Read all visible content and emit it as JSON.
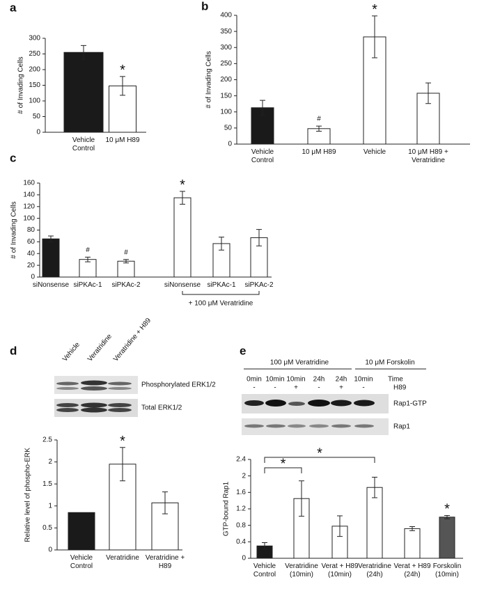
{
  "chart_data": [
    {
      "type": "bar",
      "panel_label": "a",
      "ylabel": "# of Invading Cells",
      "categories": [
        "Vehicle\nControl",
        "10 μM H89"
      ],
      "values": [
        255,
        148
      ],
      "errors": [
        22,
        30
      ],
      "colors": [
        "#1a1a1a",
        "#ffffff"
      ],
      "value_annotations": [
        null,
        "*"
      ],
      "ylim": [
        0,
        300
      ],
      "yticks": [
        0,
        50,
        100,
        150,
        200,
        250,
        300
      ]
    },
    {
      "type": "bar",
      "panel_label": "b",
      "ylabel": "# of Invading Cells",
      "categories": [
        "Vehicle\nControl",
        "10 μM H89",
        "Vehicle",
        "10 μM H89 +\nVeratridine"
      ],
      "values": [
        113,
        48,
        333,
        158
      ],
      "errors": [
        23,
        8,
        65,
        32
      ],
      "colors": [
        "#1a1a1a",
        "#ffffff",
        "#ffffff",
        "#ffffff"
      ],
      "value_annotations": [
        null,
        "#",
        "*",
        null
      ],
      "ylim": [
        0,
        400
      ],
      "yticks": [
        0,
        50,
        100,
        150,
        200,
        250,
        300,
        350,
        400
      ]
    },
    {
      "type": "bar",
      "panel_label": "c",
      "ylabel": "# of Invading Cells",
      "categories": [
        "siNonsense",
        "siPKAc-1",
        "siPKAc-2",
        "siNonsense",
        "siPKAc-1",
        "siPKAc-2"
      ],
      "values": [
        65,
        30,
        27,
        135,
        57,
        67
      ],
      "errors": [
        5,
        4,
        3,
        11,
        11,
        14
      ],
      "colors": [
        "#1a1a1a",
        "#ffffff",
        "#ffffff",
        "#ffffff",
        "#ffffff",
        "#ffffff"
      ],
      "value_annotations": [
        null,
        "#",
        "#",
        "*",
        null,
        null
      ],
      "group_label": {
        "text": "+ 100 μM Veratridine",
        "from": 3,
        "to": 5
      },
      "ylim": [
        0,
        160
      ],
      "yticks": [
        0,
        20,
        40,
        60,
        80,
        100,
        120,
        140,
        160
      ]
    },
    {
      "type": "bar",
      "panel_label": "d",
      "ylabel": "Relative level of phospho-ERK",
      "blot": {
        "columns": [
          "Vehicle",
          "Veratridine",
          "Veratridine + H89"
        ],
        "rows": [
          "Phosphorylated ERK1/2",
          "Total ERK1/2"
        ]
      },
      "categories": [
        "Vehicle\nControl",
        "Veratridine",
        "Veratridine +\nH89"
      ],
      "values": [
        0.85,
        1.95,
        1.07
      ],
      "errors": [
        null,
        0.38,
        0.25
      ],
      "colors": [
        "#1a1a1a",
        "#ffffff",
        "#ffffff"
      ],
      "value_annotations": [
        null,
        "*",
        null
      ],
      "ylim": [
        0,
        2.5
      ],
      "yticks": [
        0,
        0.5,
        1,
        1.5,
        2,
        2.5
      ]
    },
    {
      "type": "bar",
      "panel_label": "e",
      "ylabel": "GTP-bound Rap1",
      "blot": {
        "header": [
          "100 μM Veratridine",
          "10 μM Forskolin"
        ],
        "time_label": "Time",
        "times": [
          "0min",
          "10min",
          "10min",
          "24h",
          "24h",
          "10min"
        ],
        "h89_label": "H89",
        "h89": [
          "-",
          "-",
          "+",
          "-",
          "+",
          "-"
        ],
        "rows": [
          "Rap1-GTP",
          "Rap1"
        ]
      },
      "categories": [
        "Vehicle\nControl",
        "Veratridine\n(10min)",
        "Verat + H89\n(10min)",
        "Veratridine\n(24h)",
        "Verat + H89\n(24h)",
        "Forskolin\n(10min)"
      ],
      "values": [
        0.3,
        1.45,
        0.78,
        1.72,
        0.72,
        1.0
      ],
      "errors": [
        0.08,
        0.43,
        0.25,
        0.25,
        0.05,
        0.04
      ],
      "colors": [
        "#1a1a1a",
        "#ffffff",
        "#ffffff",
        "#ffffff",
        "#ffffff",
        "#555555"
      ],
      "value_annotations": [
        null,
        null,
        null,
        null,
        null,
        "*"
      ],
      "brackets": [
        {
          "text": "*",
          "from": 0,
          "to": 1
        },
        {
          "text": "*",
          "from": 0,
          "to": 3
        }
      ],
      "ylim": [
        0,
        2.4
      ],
      "yticks": [
        0,
        0.4,
        0.8,
        1.2,
        1.6,
        2,
        2.4
      ]
    }
  ]
}
